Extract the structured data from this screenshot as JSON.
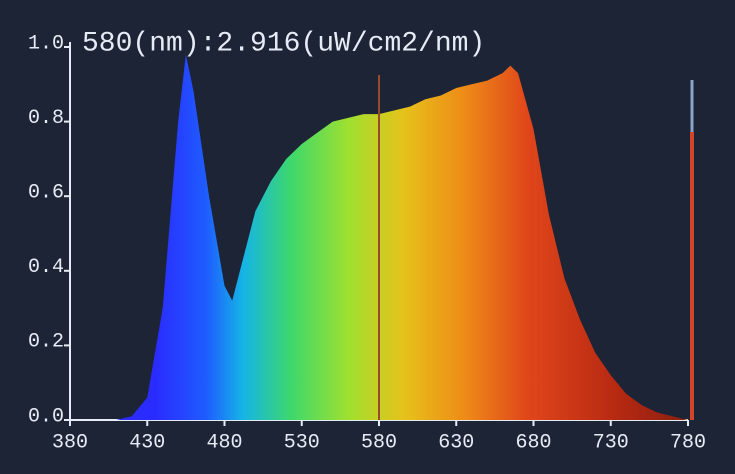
{
  "chart_data": {
    "type": "area",
    "title": "580(nm):2.916(uW/cm2/nm)",
    "x": [
      380,
      390,
      400,
      410,
      420,
      430,
      440,
      450,
      455,
      460,
      470,
      480,
      485,
      490,
      500,
      510,
      520,
      530,
      540,
      550,
      560,
      570,
      580,
      590,
      600,
      610,
      620,
      630,
      640,
      650,
      660,
      665,
      670,
      680,
      690,
      700,
      710,
      720,
      730,
      740,
      750,
      760,
      770,
      780
    ],
    "values": [
      0,
      0,
      0,
      0,
      0.01,
      0.06,
      0.3,
      0.8,
      0.98,
      0.88,
      0.6,
      0.36,
      0.32,
      0.4,
      0.56,
      0.64,
      0.7,
      0.74,
      0.77,
      0.8,
      0.81,
      0.82,
      0.82,
      0.83,
      0.84,
      0.86,
      0.87,
      0.89,
      0.9,
      0.91,
      0.93,
      0.95,
      0.93,
      0.78,
      0.55,
      0.38,
      0.27,
      0.18,
      0.12,
      0.07,
      0.04,
      0.02,
      0.01,
      0
    ],
    "xlim": [
      380,
      780
    ],
    "xticks": [
      380,
      430,
      480,
      530,
      580,
      630,
      680,
      730,
      780
    ],
    "ylim": [
      0,
      1
    ],
    "yticks": [
      {
        "value": 0,
        "label": "0.0"
      },
      0.2,
      0.4,
      0.6,
      0.8,
      {
        "value": 1,
        "label": "1.0"
      }
    ],
    "cursor": 580
  }
}
